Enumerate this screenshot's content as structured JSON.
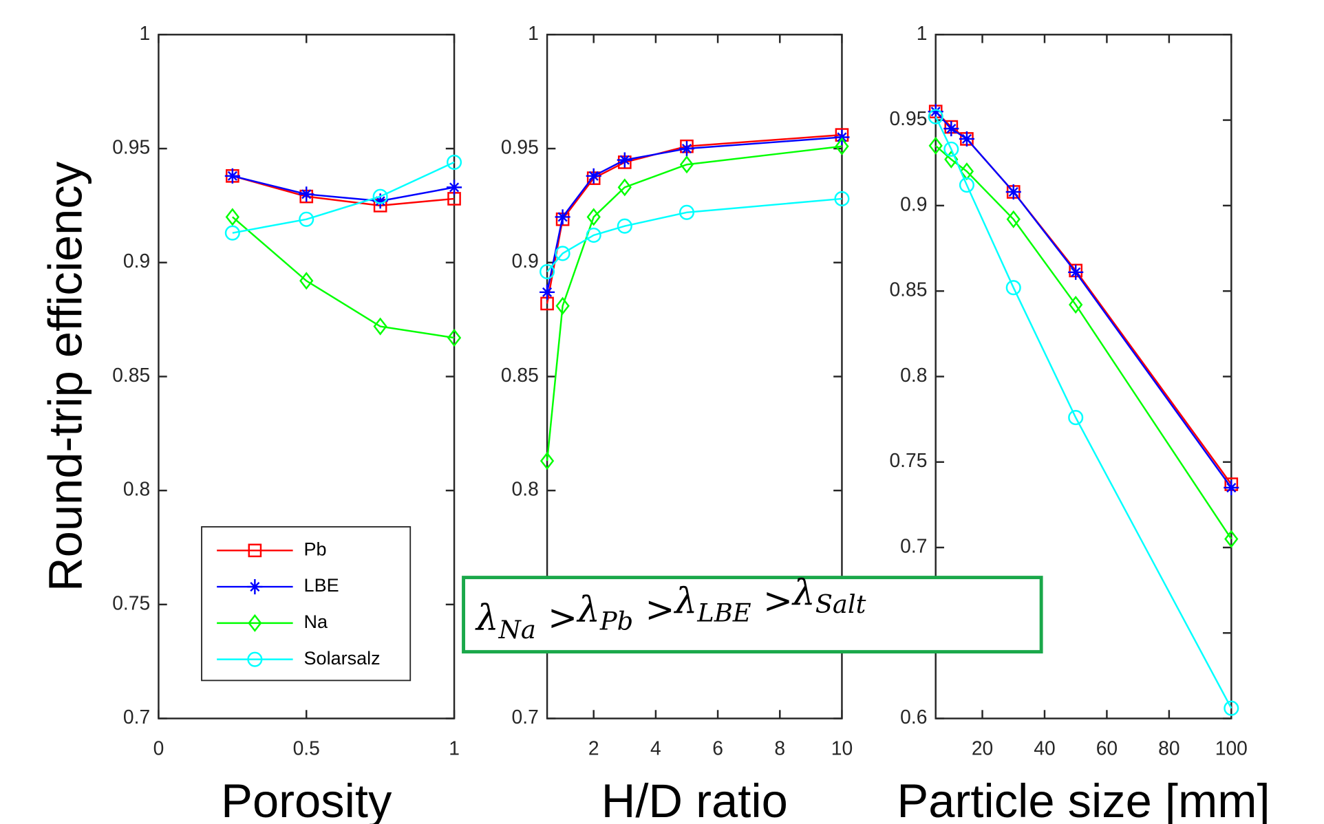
{
  "chart_data": [
    {
      "type": "line",
      "xlabel": "Porosity",
      "ylabel": "Round-trip efficiency",
      "x": [
        0.25,
        0.5,
        0.75,
        1
      ],
      "xlim": [
        0,
        1
      ],
      "xticks": [
        0,
        0.5,
        1
      ],
      "ylim": [
        0.7,
        1
      ],
      "yticks": [
        0.7,
        0.75,
        0.8,
        0.85,
        0.9,
        0.95,
        1
      ],
      "legend": "lower left",
      "series": [
        {
          "name": "Pb",
          "color": "#ff0000",
          "marker": "square",
          "values": [
            0.938,
            0.929,
            0.925,
            0.928
          ]
        },
        {
          "name": "LBE",
          "color": "#0000ff",
          "marker": "asterisk",
          "values": [
            0.938,
            0.93,
            0.927,
            0.933
          ]
        },
        {
          "name": "Na",
          "color": "#00ff00",
          "marker": "diamond",
          "values": [
            0.92,
            0.892,
            0.872,
            0.867
          ]
        },
        {
          "name": "Solarsalz",
          "color": "#00ffff",
          "marker": "circle",
          "values": [
            0.913,
            0.919,
            0.929,
            0.944
          ]
        }
      ]
    },
    {
      "type": "line",
      "xlabel": "H/D ratio",
      "x": [
        0.5,
        1,
        2,
        3,
        5,
        10
      ],
      "xlim": [
        0.5,
        10
      ],
      "xticks": [
        2,
        4,
        6,
        8,
        10
      ],
      "ylim": [
        0.7,
        1
      ],
      "yticks": [
        0.7,
        0.75,
        0.8,
        0.85,
        0.9,
        0.95,
        1
      ],
      "series": [
        {
          "name": "Pb",
          "color": "#ff0000",
          "marker": "square",
          "values": [
            0.882,
            0.919,
            0.937,
            0.944,
            0.951,
            0.956
          ]
        },
        {
          "name": "LBE",
          "color": "#0000ff",
          "marker": "asterisk",
          "values": [
            0.887,
            0.92,
            0.938,
            0.945,
            0.95,
            0.955
          ]
        },
        {
          "name": "Na",
          "color": "#00ff00",
          "marker": "diamond",
          "values": [
            0.813,
            0.881,
            0.92,
            0.933,
            0.943,
            0.951
          ]
        },
        {
          "name": "Solarsalz",
          "color": "#00ffff",
          "marker": "circle",
          "values": [
            0.896,
            0.904,
            0.912,
            0.916,
            0.922,
            0.928
          ]
        }
      ]
    },
    {
      "type": "line",
      "xlabel": "Particle size [mm]",
      "x": [
        5,
        10,
        15,
        30,
        50,
        100
      ],
      "xlim": [
        5,
        100
      ],
      "xticks": [
        20,
        40,
        60,
        80,
        100
      ],
      "ylim": [
        0.6,
        1
      ],
      "yticks": [
        0.6,
        0.65,
        0.7,
        0.75,
        0.8,
        0.85,
        0.9,
        0.95,
        1
      ],
      "series": [
        {
          "name": "Pb",
          "color": "#ff0000",
          "marker": "square",
          "values": [
            0.955,
            0.946,
            0.939,
            0.908,
            0.862,
            0.737
          ]
        },
        {
          "name": "LBE",
          "color": "#0000ff",
          "marker": "asterisk",
          "values": [
            0.955,
            0.945,
            0.939,
            0.908,
            0.861,
            0.735
          ]
        },
        {
          "name": "Na",
          "color": "#00ff00",
          "marker": "diamond",
          "values": [
            0.935,
            0.927,
            0.92,
            0.892,
            0.842,
            0.705
          ]
        },
        {
          "name": "Solarsalz",
          "color": "#00ffff",
          "marker": "circle",
          "values": [
            0.952,
            0.933,
            0.912,
            0.852,
            0.776,
            0.606
          ]
        }
      ]
    }
  ],
  "annotation": {
    "symbol": "λ",
    "relation": ">",
    "terms": [
      "Na",
      "Pb",
      "LBE",
      "Salt"
    ],
    "color": "#1aa84a"
  }
}
